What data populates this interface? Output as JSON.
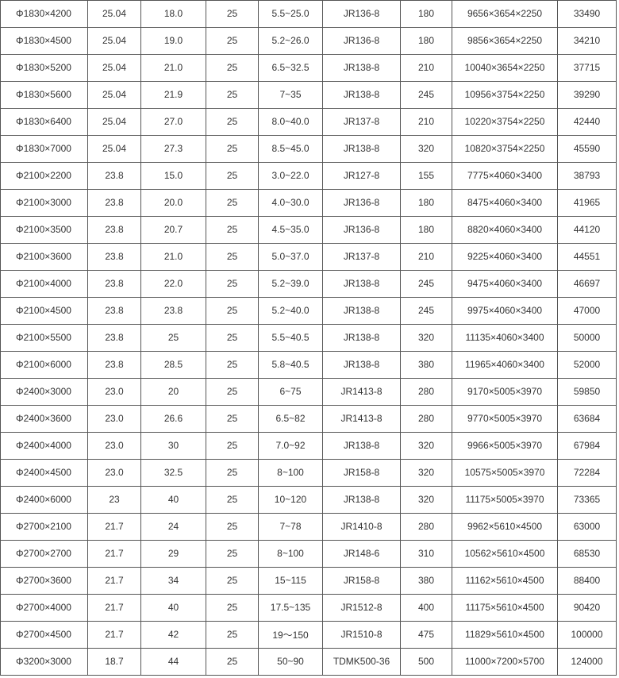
{
  "table": {
    "rows": [
      [
        "Φ1830×4200",
        "25.04",
        "18.0",
        "25",
        "5.5~25.0",
        "JR136-8",
        "180",
        "9656×3654×2250",
        "33490"
      ],
      [
        "Φ1830×4500",
        "25.04",
        "19.0",
        "25",
        "5.2~26.0",
        "JR136-8",
        "180",
        "9856×3654×2250",
        "34210"
      ],
      [
        "Φ1830×5200",
        "25.04",
        "21.0",
        "25",
        "6.5~32.5",
        "JR138-8",
        "210",
        "10040×3654×2250",
        "37715"
      ],
      [
        "Φ1830×5600",
        "25.04",
        "21.9",
        "25",
        "7~35",
        "JR138-8",
        "245",
        "10956×3754×2250",
        "39290"
      ],
      [
        "Φ1830×6400",
        "25.04",
        "27.0",
        "25",
        "8.0~40.0",
        "JR137-8",
        "210",
        "10220×3754×2250",
        "42440"
      ],
      [
        "Φ1830×7000",
        "25.04",
        "27.3",
        "25",
        "8.5~45.0",
        "JR138-8",
        "320",
        "10820×3754×2250",
        "45590"
      ],
      [
        "Φ2100×2200",
        "23.8",
        "15.0",
        "25",
        "3.0~22.0",
        "JR127-8",
        "155",
        "7775×4060×3400",
        "38793"
      ],
      [
        "Φ2100×3000",
        "23.8",
        "20.0",
        "25",
        "4.0~30.0",
        "JR136-8",
        "180",
        "8475×4060×3400",
        "41965"
      ],
      [
        "Φ2100×3500",
        "23.8",
        "20.7",
        "25",
        "4.5~35.0",
        "JR136-8",
        "180",
        "8820×4060×3400",
        "44120"
      ],
      [
        "Φ2100×3600",
        "23.8",
        "21.0",
        "25",
        "5.0~37.0",
        "JR137-8",
        "210",
        "9225×4060×3400",
        "44551"
      ],
      [
        "Φ2100×4000",
        "23.8",
        "22.0",
        "25",
        "5.2~39.0",
        "JR138-8",
        "245",
        "9475×4060×3400",
        "46697"
      ],
      [
        "Φ2100×4500",
        "23.8",
        "23.8",
        "25",
        "5.2~40.0",
        "JR138-8",
        "245",
        "9975×4060×3400",
        "47000"
      ],
      [
        "Φ2100×5500",
        "23.8",
        "25",
        "25",
        "5.5~40.5",
        "JR138-8",
        "320",
        "11135×4060×3400",
        "50000"
      ],
      [
        "Φ2100×6000",
        "23.8",
        "28.5",
        "25",
        "5.8~40.5",
        "JR138-8",
        "380",
        "11965×4060×3400",
        "52000"
      ],
      [
        "Φ2400×3000",
        "23.0",
        "20",
        "25",
        "6~75",
        "JR1413-8",
        "280",
        "9170×5005×3970",
        "59850"
      ],
      [
        "Φ2400×3600",
        "23.0",
        "26.6",
        "25",
        "6.5~82",
        "JR1413-8",
        "280",
        "9770×5005×3970",
        "63684"
      ],
      [
        "Φ2400×4000",
        "23.0",
        "30",
        "25",
        "7.0~92",
        "JR138-8",
        "320",
        "9966×5005×3970",
        "67984"
      ],
      [
        "Φ2400×4500",
        "23.0",
        "32.5",
        "25",
        "8~100",
        "JR158-8",
        "320",
        "10575×5005×3970",
        "72284"
      ],
      [
        "Φ2400×6000",
        "23",
        "40",
        "25",
        "10~120",
        "JR138-8",
        "320",
        "11175×5005×3970",
        "73365"
      ],
      [
        "Φ2700×2100",
        "21.7",
        "24",
        "25",
        "7~78",
        "JR1410-8",
        "280",
        "9962×5610×4500",
        "63000"
      ],
      [
        "Φ2700×2700",
        "21.7",
        "29",
        "25",
        "8~100",
        "JR148-6",
        "310",
        "10562×5610×4500",
        "68530"
      ],
      [
        "Φ2700×3600",
        "21.7",
        "34",
        "25",
        "15~115",
        "JR158-8",
        "380",
        "11162×5610×4500",
        "88400"
      ],
      [
        "Φ2700×4000",
        "21.7",
        "40",
        "25",
        "17.5~135",
        "JR1512-8",
        "400",
        "11175×5610×4500",
        "90420"
      ],
      [
        "Φ2700×4500",
        "21.7",
        "42",
        "25",
        "19～150",
        "JR1510-8",
        "475",
        "11829×5610×4500",
        "100000"
      ],
      [
        "Φ3200×3000",
        "18.7",
        "44",
        "25",
        "50~90",
        "TDMK500-36",
        "500",
        "11000×7200×5700",
        "124000"
      ]
    ]
  }
}
